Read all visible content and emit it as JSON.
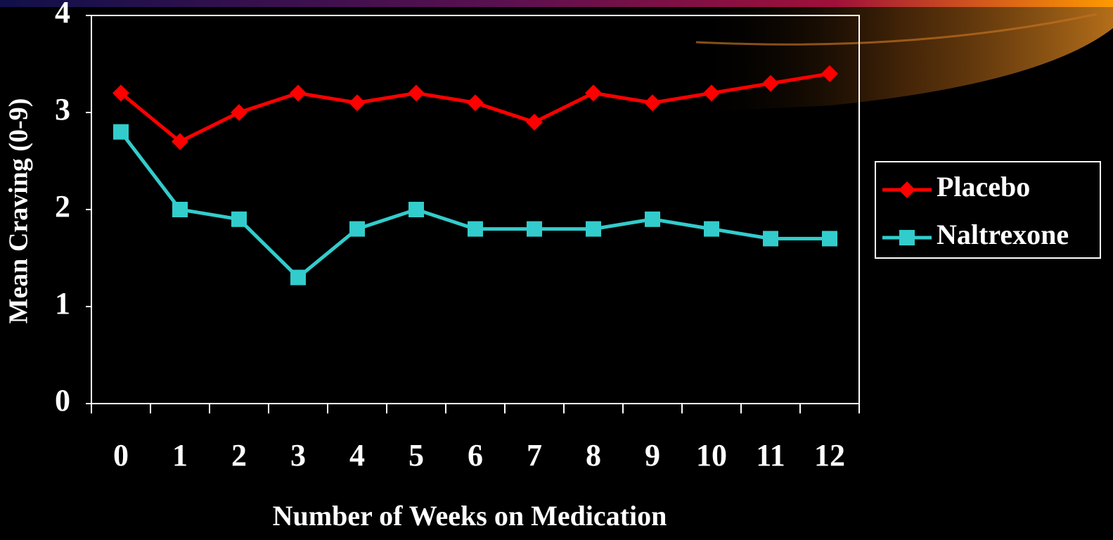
{
  "chart_data": {
    "type": "line",
    "x_label": "Number of Weeks on Medication",
    "y_label": "Mean Craving (0-9)",
    "categories": [
      "0",
      "1",
      "2",
      "3",
      "4",
      "5",
      "6",
      "7",
      "8",
      "9",
      "10",
      "11",
      "12"
    ],
    "series": [
      {
        "name": "Placebo",
        "color": "#ff0000",
        "marker": "diamond",
        "values": [
          3.2,
          2.7,
          3.0,
          3.2,
          3.1,
          3.2,
          3.1,
          2.9,
          3.2,
          3.1,
          3.2,
          3.3,
          3.4
        ]
      },
      {
        "name": "Naltrexone",
        "color": "#33cccc",
        "marker": "square",
        "values": [
          2.8,
          2.0,
          1.9,
          1.3,
          1.8,
          2.0,
          1.8,
          1.8,
          1.8,
          1.9,
          1.8,
          1.7,
          1.7
        ]
      }
    ],
    "ylim": [
      0,
      4
    ],
    "yticks": [
      0,
      1,
      2,
      3,
      4
    ],
    "grid": false,
    "legend": "right"
  }
}
